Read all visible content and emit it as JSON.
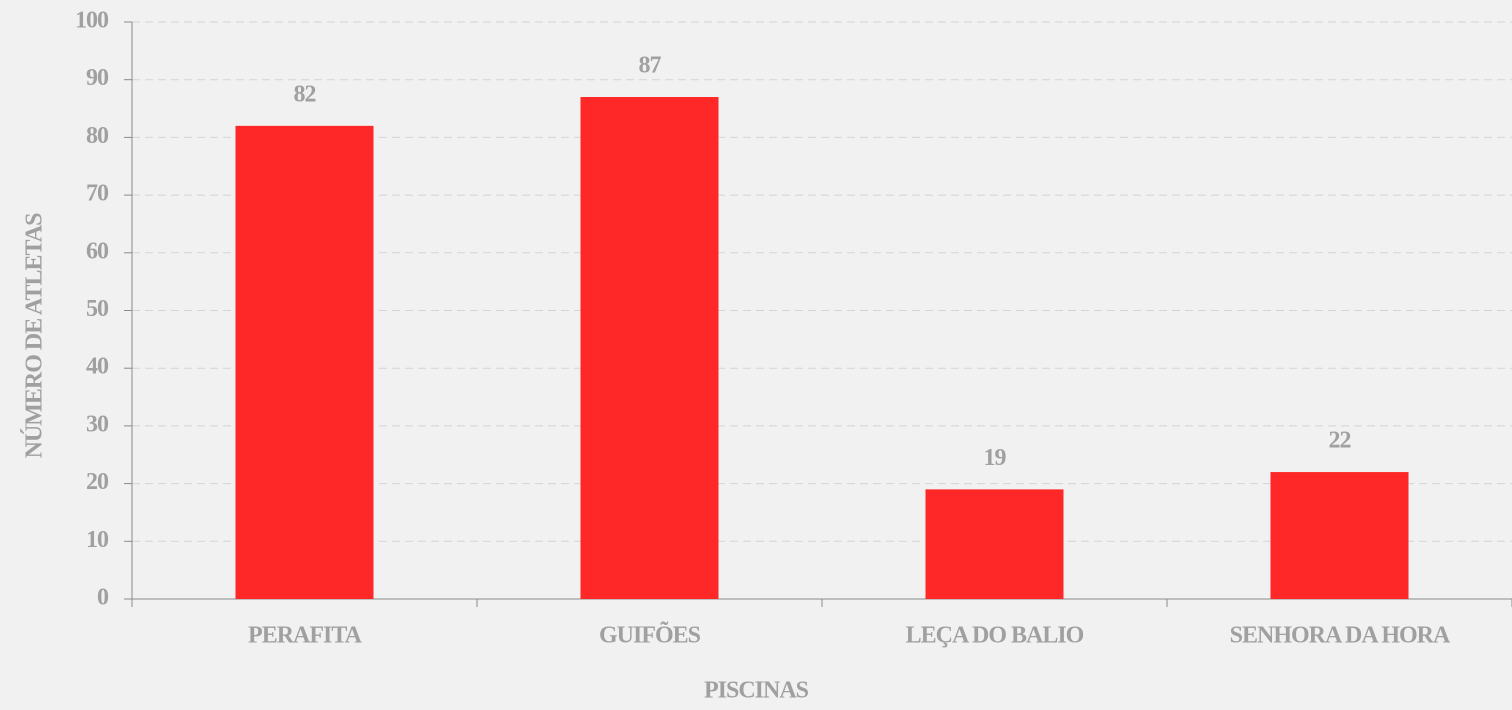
{
  "chart_data": {
    "type": "bar",
    "categories": [
      "PERAFITA",
      "GUIFÕES",
      "LEÇA DO BALIO",
      "SENHORA DA HORA"
    ],
    "values": [
      82,
      87,
      19,
      22
    ],
    "color": "#ff2828",
    "x_label": "PISCINAS",
    "y_label": "NÚMERO DE ATLETAS",
    "ylim": [
      0,
      100
    ],
    "yticks": [
      0,
      10,
      20,
      30,
      40,
      50,
      60,
      70,
      80,
      90,
      100
    ],
    "grid": true
  }
}
